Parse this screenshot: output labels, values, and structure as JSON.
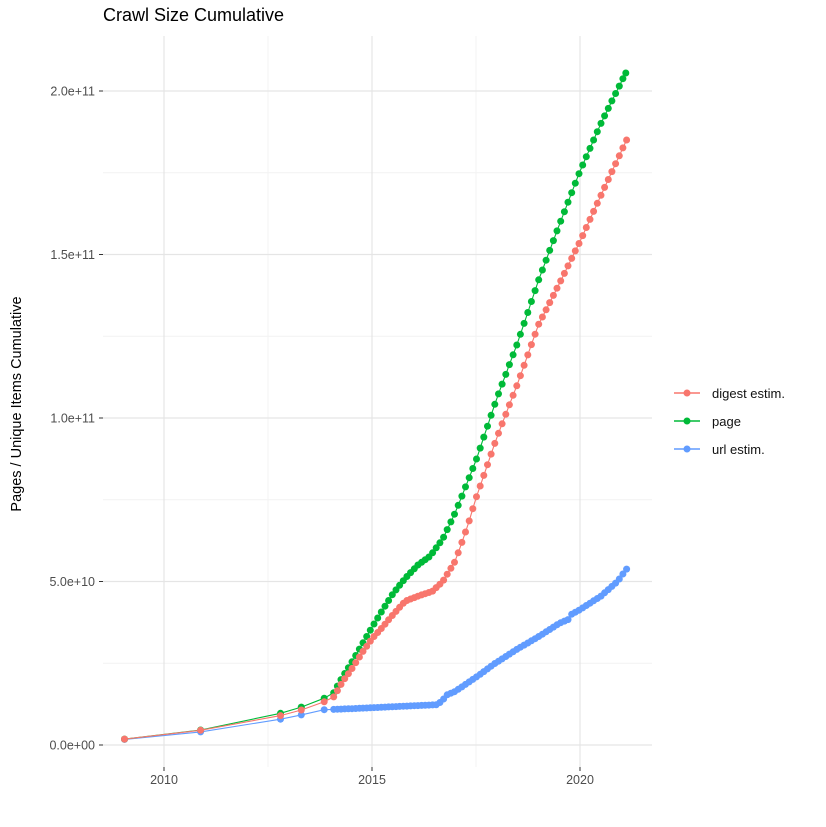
{
  "chart_data": {
    "type": "scatter",
    "title": "Crawl Size Cumulative",
    "xlabel": "",
    "ylabel": "Pages / Unique Items Cumulative",
    "value_unit": "items (values below in billions, 1e9)",
    "xlim": [
      2008.5,
      2021.75
    ],
    "ylim_billions": [
      0,
      217
    ],
    "grid": "on",
    "legend_position": "right",
    "x_ticks": [
      {
        "value": 2010,
        "label": "2010"
      },
      {
        "value": 2015,
        "label": "2015"
      },
      {
        "value": 2020,
        "label": "2020"
      }
    ],
    "x_minor": [
      2012.5,
      2017.5
    ],
    "y_ticks": [
      {
        "value": 0,
        "label": "0.0e+00"
      },
      {
        "value": 50,
        "label": "5.0e+10"
      },
      {
        "value": 100,
        "label": "1.0e+11"
      },
      {
        "value": 150,
        "label": "1.5e+11"
      },
      {
        "value": 200,
        "label": "2.0e+11"
      }
    ],
    "y_minor": [
      25,
      75,
      125,
      175
    ],
    "series": [
      {
        "label": "digest estim.",
        "color": "#F8766D",
        "sparse_points": [
          [
            2009.05,
            1.8
          ],
          [
            2010.88,
            4.5
          ],
          [
            2012.8,
            9.0
          ],
          [
            2013.3,
            10.7
          ],
          [
            2013.85,
            13.2
          ]
        ],
        "dense_anchors": [
          [
            2014.08,
            14.7
          ],
          [
            2014.3,
            19.5
          ],
          [
            2014.5,
            23.0
          ],
          [
            2014.75,
            28.0
          ],
          [
            2015.0,
            32.5
          ],
          [
            2015.25,
            36.0
          ],
          [
            2015.5,
            39.8
          ],
          [
            2015.8,
            44.0
          ],
          [
            2016.1,
            45.5
          ],
          [
            2016.45,
            47.0
          ],
          [
            2016.7,
            50.0
          ],
          [
            2017.0,
            56.2
          ],
          [
            2017.3,
            67.0
          ],
          [
            2017.5,
            75.5
          ],
          [
            2018.0,
            94.0
          ],
          [
            2018.5,
            110.5
          ],
          [
            2019.0,
            128.5
          ],
          [
            2019.5,
            141.0
          ],
          [
            2020.0,
            154.0
          ],
          [
            2020.5,
            168.0
          ],
          [
            2021.12,
            185.0
          ]
        ],
        "dense_step_years": 0.088
      },
      {
        "label": "page",
        "color": "#00BA38",
        "sparse_points": [
          [
            2009.05,
            1.8
          ],
          [
            2010.88,
            4.6
          ],
          [
            2012.8,
            9.7
          ],
          [
            2013.3,
            11.6
          ],
          [
            2013.85,
            14.3
          ]
        ],
        "dense_anchors": [
          [
            2014.08,
            16.0
          ],
          [
            2014.3,
            21.0
          ],
          [
            2014.5,
            25.0
          ],
          [
            2014.75,
            30.5
          ],
          [
            2015.0,
            36.0
          ],
          [
            2015.25,
            41.2
          ],
          [
            2015.5,
            46.2
          ],
          [
            2015.8,
            51.0
          ],
          [
            2016.1,
            55.0
          ],
          [
            2016.4,
            57.8
          ],
          [
            2016.7,
            63.0
          ],
          [
            2017.0,
            71.0
          ],
          [
            2017.5,
            87.0
          ],
          [
            2018.0,
            106.0
          ],
          [
            2018.5,
            123.0
          ],
          [
            2019.0,
            142.0
          ],
          [
            2019.5,
            159.0
          ],
          [
            2020.0,
            175.5
          ],
          [
            2020.5,
            190.0
          ],
          [
            2020.75,
            196.5
          ],
          [
            2021.1,
            205.5
          ]
        ],
        "dense_step_years": 0.088
      },
      {
        "label": "url estim.",
        "color": "#619CFF",
        "sparse_points": [
          [
            2009.05,
            1.7
          ],
          [
            2010.88,
            4.0
          ],
          [
            2012.8,
            7.9
          ],
          [
            2013.3,
            9.2
          ],
          [
            2013.85,
            10.8
          ]
        ],
        "dense_anchors": [
          [
            2014.08,
            10.9
          ],
          [
            2014.5,
            11.1
          ],
          [
            2015.0,
            11.4
          ],
          [
            2015.5,
            11.7
          ],
          [
            2016.0,
            12.0
          ],
          [
            2016.55,
            12.3
          ],
          [
            2016.67,
            13.3
          ],
          [
            2016.8,
            15.3
          ],
          [
            2017.0,
            16.4
          ],
          [
            2017.5,
            20.7
          ],
          [
            2017.95,
            24.9
          ],
          [
            2018.05,
            25.7
          ],
          [
            2018.5,
            29.4
          ],
          [
            2019.0,
            33.1
          ],
          [
            2019.5,
            37.2
          ],
          [
            2019.72,
            38.4
          ],
          [
            2019.8,
            40.0
          ],
          [
            2020.0,
            41.4
          ],
          [
            2020.5,
            45.5
          ],
          [
            2020.9,
            50.0
          ],
          [
            2021.12,
            53.8
          ]
        ],
        "dense_step_years": 0.088
      }
    ],
    "style": {
      "major_grid_color": "#E5E5E5",
      "minor_grid_color": "#F2F2F2",
      "tick_mark_color": "#333333",
      "tick_label_color": "#4D4D4D",
      "point_radius": 3.5
    }
  }
}
